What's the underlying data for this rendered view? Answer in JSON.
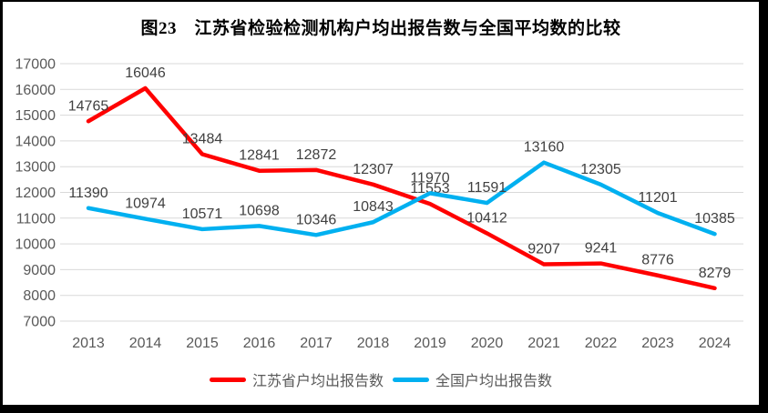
{
  "title": "图23　江苏省检验检测机构户均出报告数与全国平均数的比较",
  "chart_data": {
    "type": "line",
    "title": "图23　江苏省检验检测机构户均出报告数与全国平均数的比较",
    "categories": [
      "2013",
      "2014",
      "2015",
      "2016",
      "2017",
      "2018",
      "2019",
      "2020",
      "2021",
      "2022",
      "2023",
      "2024"
    ],
    "series": [
      {
        "name": "江苏省户均出报告数",
        "color": "#ff0000",
        "values": [
          14765,
          16046,
          13484,
          12841,
          12872,
          12307,
          11553,
          10412,
          9207,
          9241,
          8776,
          8279
        ]
      },
      {
        "name": "全国户均出报告数",
        "color": "#00b0f0",
        "values": [
          11390,
          10974,
          10571,
          10698,
          10346,
          10843,
          11970,
          11591,
          13160,
          12305,
          11201,
          10385
        ]
      }
    ],
    "ylim": [
      7000,
      17000
    ],
    "ytick_step": 1000,
    "grid": true,
    "data_labels": true,
    "legend_position": "bottom"
  },
  "colors": {
    "jiangsu_series": "#ff0000",
    "national_series": "#00b0f0",
    "gridline": "#d9d9d9",
    "axis_text": "#595959",
    "data_label_text": "#404040",
    "title_text": "#000000",
    "background": "#ffffff",
    "frame_border": "#000000"
  }
}
